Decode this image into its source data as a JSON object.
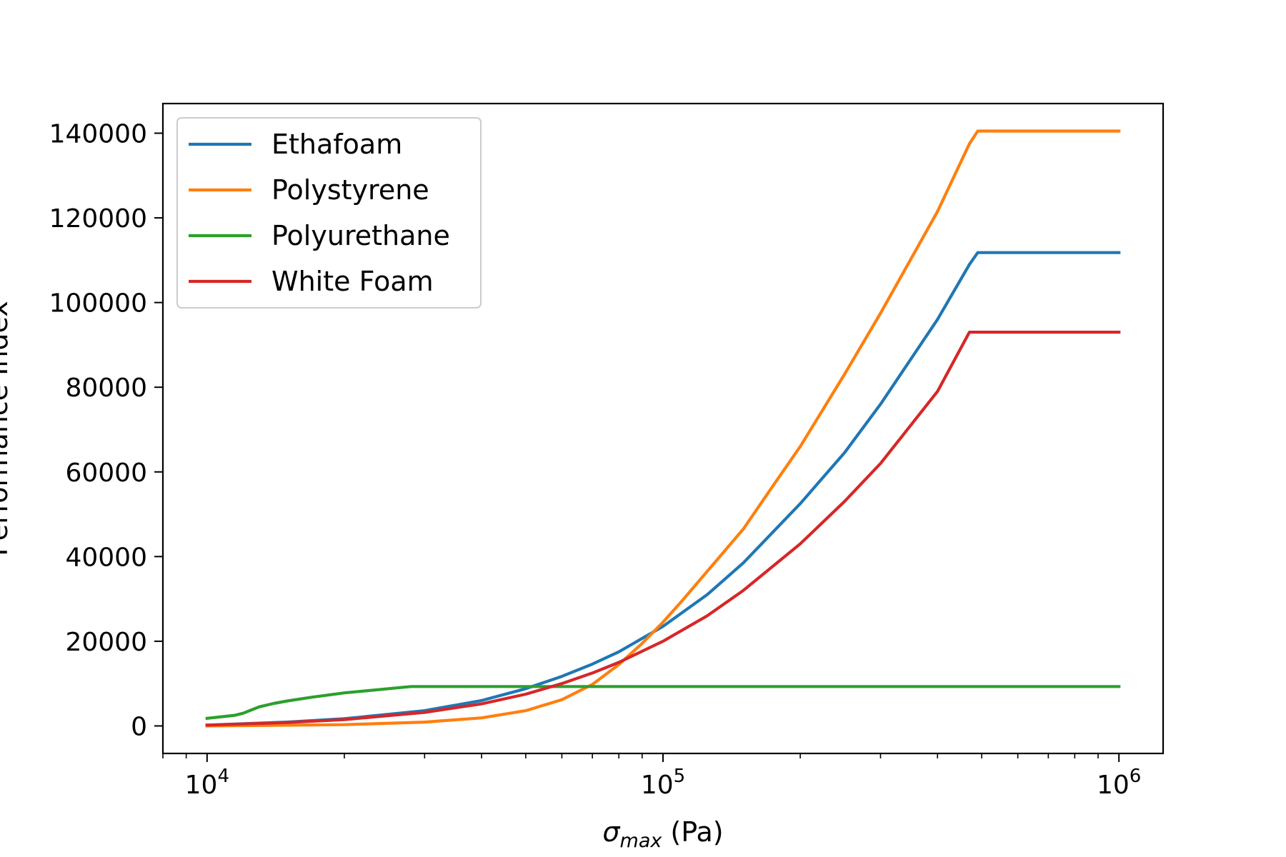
{
  "chart_data": {
    "type": "line",
    "xscale": "log",
    "xlim": [
      8000,
      1250000
    ],
    "ylim": [
      -6500,
      147000
    ],
    "xlabel": {
      "symbol": "σ",
      "subscript": "max",
      "unit": " (Pa)"
    },
    "ylabel": "Performance Index",
    "x_ticks": [
      {
        "value": 10000,
        "base": "10",
        "exp": "4"
      },
      {
        "value": 100000,
        "base": "10",
        "exp": "5"
      },
      {
        "value": 1000000,
        "base": "10",
        "exp": "6"
      }
    ],
    "y_ticks": [
      "0",
      "20000",
      "40000",
      "60000",
      "80000",
      "100000",
      "120000",
      "140000"
    ],
    "legend_position": "upper-left",
    "grid": false,
    "series": [
      {
        "name": "Ethafoam",
        "color": "#1f77b4",
        "x": [
          10000,
          15000,
          20000,
          30000,
          40000,
          50000,
          60000,
          70000,
          80000,
          100000,
          125000,
          150000,
          200000,
          250000,
          300000,
          400000,
          470000,
          490000,
          700000,
          1000000
        ],
        "y": [
          200,
          900,
          1700,
          3600,
          6000,
          8800,
          11700,
          14600,
          17500,
          23500,
          31000,
          38500,
          52500,
          64500,
          76000,
          96000,
          109000,
          111800,
          111800,
          111800
        ]
      },
      {
        "name": "Polystyrene",
        "color": "#ff7f0e",
        "x": [
          10000,
          20000,
          30000,
          40000,
          50000,
          60000,
          70000,
          80000,
          90000,
          100000,
          110000,
          125000,
          150000,
          175000,
          200000,
          250000,
          300000,
          400000,
          470000,
          490000,
          700000,
          1000000
        ],
        "y": [
          0,
          300,
          900,
          1900,
          3600,
          6200,
          9800,
          14500,
          19500,
          24500,
          29500,
          36500,
          46500,
          57000,
          66000,
          83000,
          97500,
          121500,
          137500,
          140500,
          140500,
          140500
        ]
      },
      {
        "name": "Polyurethane",
        "color": "#2ca02c",
        "x": [
          10000,
          11500,
          12000,
          13000,
          14000,
          15000,
          17000,
          20000,
          25000,
          28000,
          100000,
          1000000
        ],
        "y": [
          1800,
          2500,
          3000,
          4500,
          5300,
          5900,
          6800,
          7800,
          8800,
          9300,
          9300,
          9300
        ]
      },
      {
        "name": "White Foam",
        "color": "#d62728",
        "x": [
          10000,
          15000,
          20000,
          30000,
          40000,
          50000,
          60000,
          70000,
          80000,
          100000,
          125000,
          150000,
          200000,
          250000,
          300000,
          400000,
          470000,
          700000,
          1000000
        ],
        "y": [
          200,
          800,
          1500,
          3200,
          5200,
          7500,
          10000,
          12500,
          15000,
          20000,
          26000,
          32000,
          43000,
          53000,
          62000,
          79000,
          93000,
          93000,
          93000
        ]
      }
    ]
  }
}
